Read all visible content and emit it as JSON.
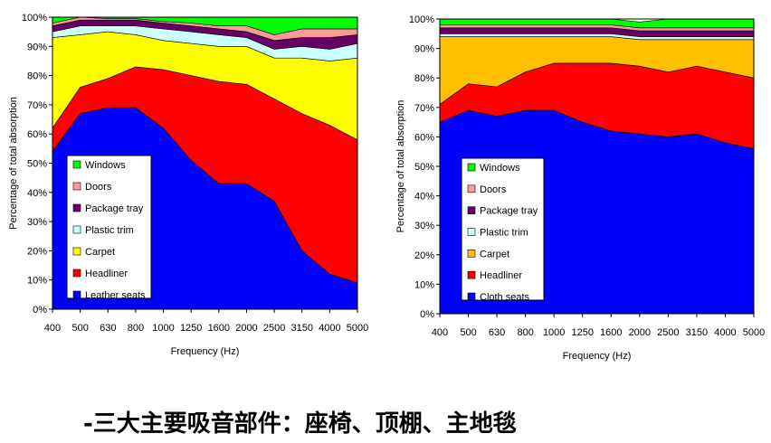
{
  "chart_data": [
    {
      "type": "area",
      "stacked": true,
      "x": [
        "400",
        "500",
        "630",
        "800",
        "1000",
        "1250",
        "1600",
        "2000",
        "2500",
        "3150",
        "4000",
        "5000"
      ],
      "xlabel": "Frequency (Hz)",
      "ylabel": "Percentage of total absorption",
      "ylim": [
        0,
        100
      ],
      "yticks": [
        "0%",
        "10%",
        "20%",
        "30%",
        "40%",
        "50%",
        "60%",
        "70%",
        "80%",
        "90%",
        "100%"
      ],
      "legend_position": "lower-left",
      "series": [
        {
          "name": "Leather seats",
          "color": "#0000FF",
          "values": [
            54,
            67,
            69,
            69,
            62,
            51,
            43,
            43,
            37,
            20,
            12,
            9
          ]
        },
        {
          "name": "Headliner",
          "color": "#FF0000",
          "values": [
            8,
            9,
            10,
            14,
            20,
            29,
            35,
            34,
            35,
            47,
            51,
            49
          ]
        },
        {
          "name": "Carpet",
          "color": "#FFFF00",
          "values": [
            31,
            18,
            16,
            11,
            10,
            11,
            12,
            13,
            14,
            19,
            22,
            28
          ]
        },
        {
          "name": "Plastic trim",
          "color": "#CCFFFF",
          "values": [
            2,
            3,
            2,
            3,
            4,
            4,
            4,
            3,
            3,
            4,
            4,
            5
          ]
        },
        {
          "name": "Package tray",
          "color": "#660066",
          "values": [
            2,
            2,
            2,
            2,
            2,
            2,
            2,
            2,
            3,
            3,
            4,
            3
          ]
        },
        {
          "name": "Doors",
          "color": "#FF9999",
          "values": [
            1,
            1,
            0.5,
            0.5,
            0.5,
            1,
            1,
            2,
            2,
            3,
            3,
            2
          ]
        },
        {
          "name": "Windows",
          "color": "#00FF00",
          "values": [
            2,
            0,
            0.5,
            0.5,
            1.5,
            2,
            3,
            3,
            6,
            4,
            4,
            4
          ]
        }
      ]
    },
    {
      "type": "area",
      "stacked": true,
      "x": [
        "400",
        "500",
        "630",
        "800",
        "1000",
        "1250",
        "1600",
        "2000",
        "2500",
        "3150",
        "4000",
        "5000"
      ],
      "xlabel": "Frequency (Hz)",
      "ylabel": "Percentage of total absorption",
      "ylim": [
        0,
        100
      ],
      "yticks": [
        "0%",
        "10%",
        "20%",
        "30%",
        "40%",
        "50%",
        "60%",
        "70%",
        "80%",
        "90%",
        "100%"
      ],
      "legend_position": "lower-left",
      "series": [
        {
          "name": "Cloth seats",
          "color": "#0000FF",
          "values": [
            65,
            69,
            67,
            69,
            69,
            65,
            62,
            61,
            60,
            61,
            58,
            56
          ]
        },
        {
          "name": "Headliner",
          "color": "#FF0000",
          "values": [
            6,
            9,
            10,
            13,
            16,
            20,
            23,
            23,
            22,
            23,
            24,
            24
          ]
        },
        {
          "name": "Carpet",
          "color": "#FFC000",
          "values": [
            23,
            16,
            17,
            12,
            9,
            9,
            9,
            9,
            11,
            9,
            11,
            13
          ]
        },
        {
          "name": "Plastic trim",
          "color": "#CCFFFF",
          "values": [
            1,
            1,
            1,
            1,
            1,
            1,
            1,
            1,
            1,
            1,
            1,
            1
          ]
        },
        {
          "name": "Package tray",
          "color": "#660066",
          "values": [
            2,
            2,
            2,
            2,
            2,
            2,
            2,
            2,
            2,
            2,
            2,
            2
          ]
        },
        {
          "name": "Doors",
          "color": "#FF9999",
          "values": [
            1,
            1,
            1,
            1,
            1,
            1,
            1,
            1,
            1,
            1,
            1,
            1
          ]
        },
        {
          "name": "Windows",
          "color": "#00FF00",
          "values": [
            2,
            2,
            2,
            2,
            2,
            2,
            2,
            2,
            3,
            3,
            3,
            3
          ]
        }
      ]
    }
  ],
  "caption": "-三大主要吸音部件：座椅、顶棚、主地毯"
}
